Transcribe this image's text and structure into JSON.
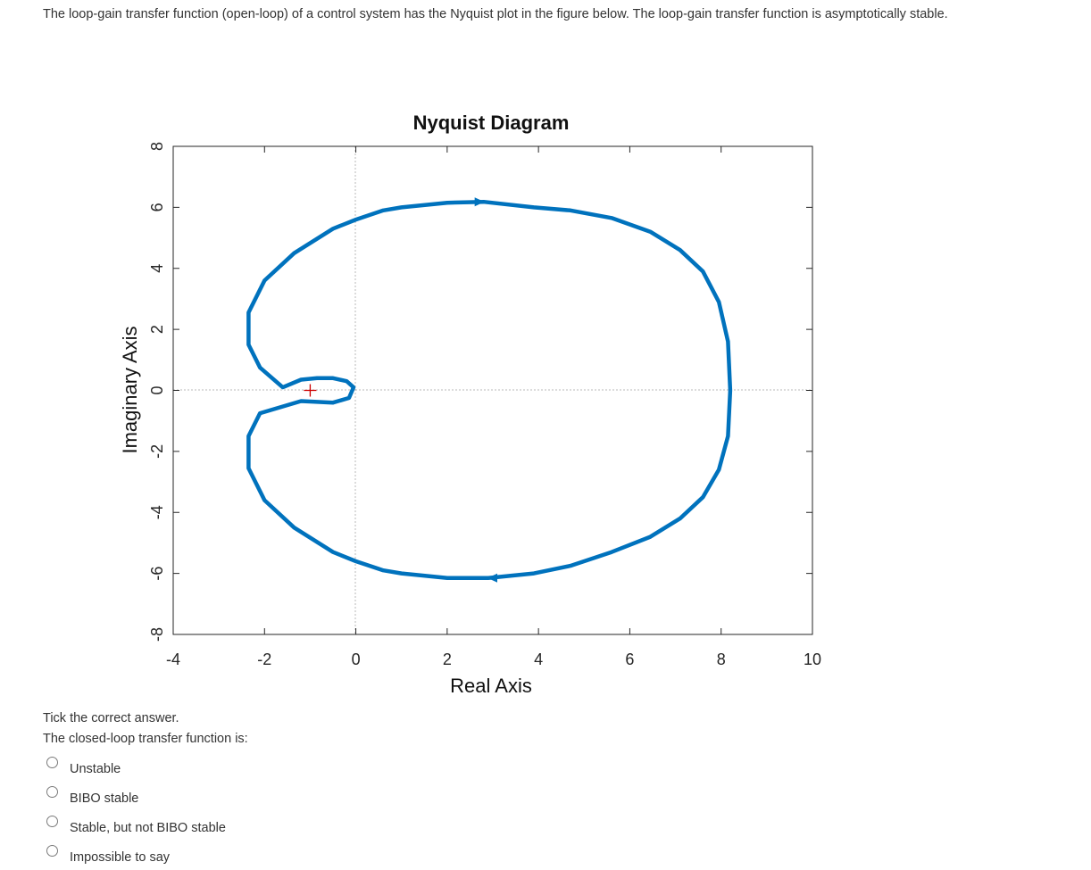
{
  "question": {
    "text": "The loop-gain transfer function (open-loop) of a control system has the Nyquist plot in the figure below. The loop-gain transfer function is asymptotically stable."
  },
  "chart_data": {
    "type": "line",
    "title": "Nyquist Diagram",
    "xlabel": "Real Axis",
    "ylabel": "Imaginary Axis",
    "xlim": [
      -4,
      10
    ],
    "ylim": [
      -8,
      8
    ],
    "xticks": [
      "-4",
      "-2",
      "0",
      "2",
      "4",
      "6",
      "8",
      "10"
    ],
    "yticks": [
      "8",
      "6",
      "4",
      "2",
      "0",
      "-2",
      "-4",
      "-6",
      "-8"
    ],
    "grid": false,
    "series_color": "#0072bd",
    "critical_point": {
      "x": -1,
      "y": 0,
      "color": "#cc0000"
    },
    "series": [
      {
        "x": [
          8.2,
          8.15,
          7.95,
          7.6,
          7.1,
          6.45,
          5.6,
          4.7,
          3.9,
          2.8,
          2.0,
          1.0,
          0.6,
          0.0,
          -0.5,
          -1.35,
          -2.0,
          -2.35,
          -2.35,
          -2.1,
          -1.6,
          -1.2,
          -0.85,
          -0.5,
          -0.2,
          -0.05,
          -0.15,
          -0.5,
          -1.2,
          -2.1,
          -2.35,
          -2.35,
          -2.0,
          -1.35,
          -0.5,
          0.0,
          0.6,
          1.0,
          2.0,
          2.9,
          3.9,
          4.7,
          5.6,
          6.45,
          7.1,
          7.6,
          7.95,
          8.15,
          8.2
        ],
        "y": [
          0.0,
          1.6,
          2.9,
          3.9,
          4.6,
          5.2,
          5.65,
          5.9,
          6.0,
          6.18,
          6.15,
          6.0,
          5.9,
          5.6,
          5.3,
          4.5,
          3.6,
          2.55,
          1.5,
          0.75,
          0.1,
          0.35,
          0.4,
          0.4,
          0.3,
          0.1,
          -0.25,
          -0.4,
          -0.35,
          -0.75,
          -1.5,
          -2.55,
          -3.6,
          -4.5,
          -5.3,
          -5.6,
          -5.9,
          -6.0,
          -6.15,
          -6.15,
          -6.0,
          -5.75,
          -5.3,
          -4.8,
          -4.2,
          -3.5,
          -2.6,
          -1.5,
          0.0
        ]
      }
    ],
    "arrows": [
      {
        "x": 2.7,
        "y": 6.18,
        "dir": "right"
      },
      {
        "x": 3.0,
        "y": -6.15,
        "dir": "left"
      }
    ]
  },
  "prompt": {
    "instruction": "Tick the correct answer.",
    "subprompt": "The closed-loop transfer function is:"
  },
  "answers": [
    {
      "label": "Unstable"
    },
    {
      "label": "BIBO stable"
    },
    {
      "label": "Stable, but not BIBO stable"
    },
    {
      "label": "Impossible to say"
    }
  ]
}
